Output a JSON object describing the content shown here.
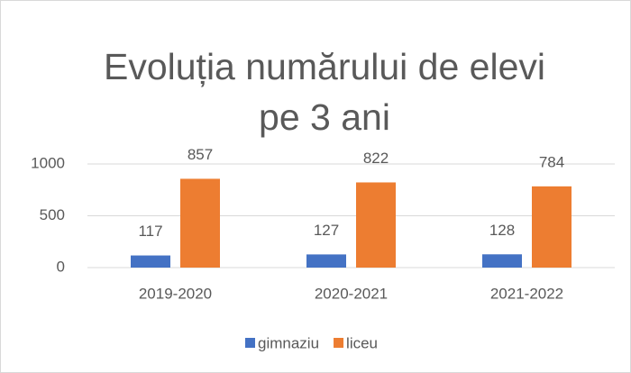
{
  "chart_data": {
    "type": "bar",
    "title": "Evoluția numărului de elevi pe 3 ani",
    "categories": [
      "2019-2020",
      "2020-2021",
      "2021-2022"
    ],
    "series": [
      {
        "name": "gimnaziu",
        "color": "#4472c4",
        "values": [
          117,
          127,
          128
        ]
      },
      {
        "name": "liceu",
        "color": "#ed7d31",
        "values": [
          857,
          822,
          784
        ]
      }
    ],
    "ylim": [
      0,
      1000
    ],
    "yticks": [
      0,
      500,
      1000
    ],
    "grid": true,
    "legend": "bottom"
  }
}
